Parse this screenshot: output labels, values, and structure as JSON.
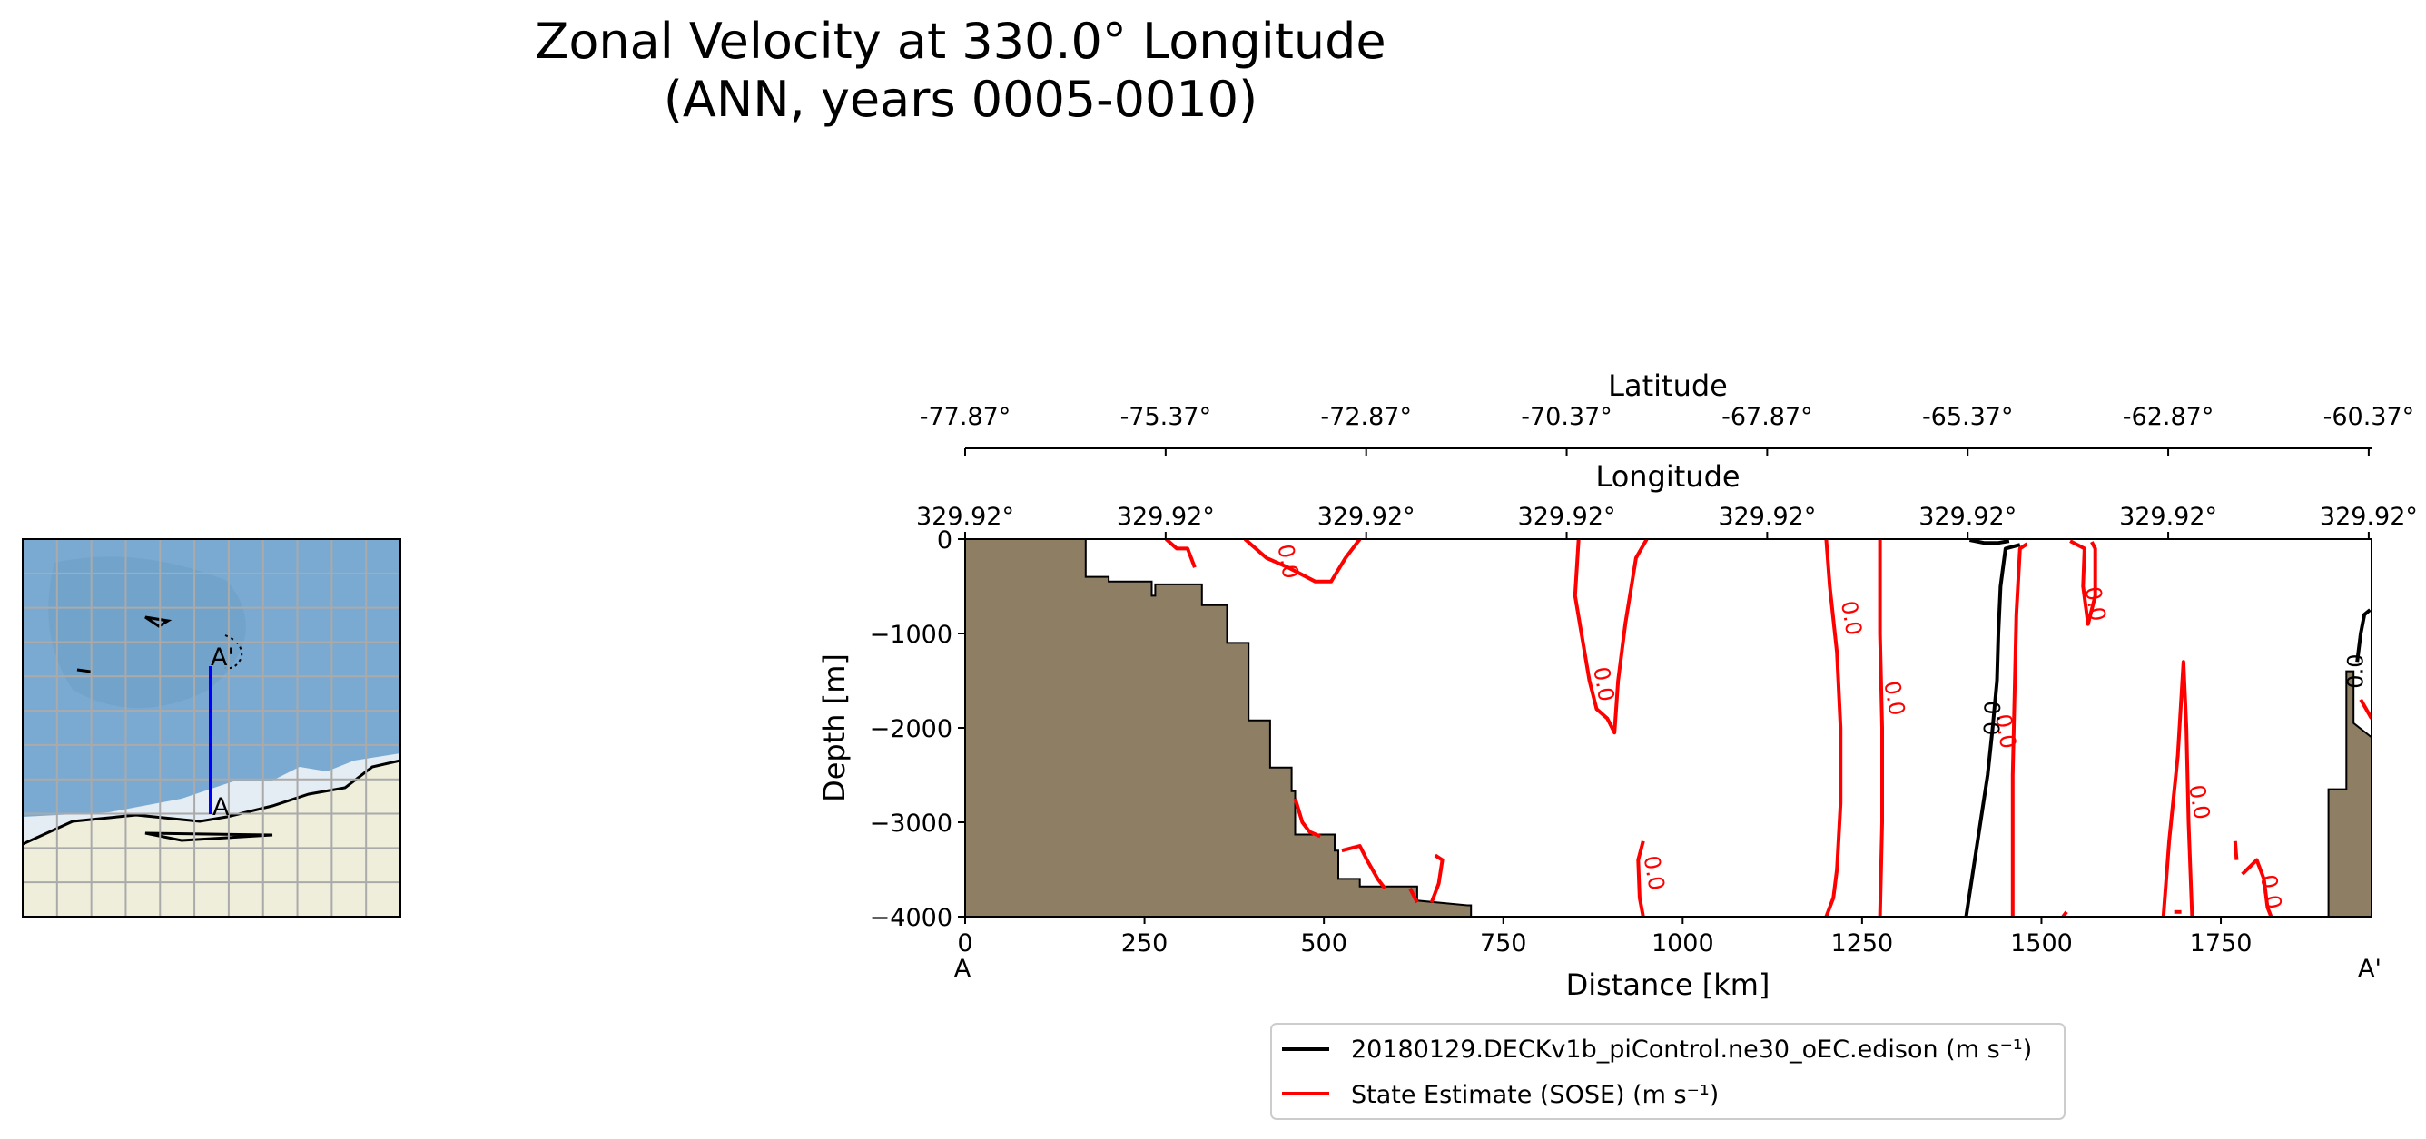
{
  "title_line1": "Zonal Velocity at 330.0° Longitude",
  "title_line2": "(ANN, years 0005-0010)",
  "map_inset": {
    "label_start": "A",
    "label_end": "A'",
    "colors": {
      "ocean": "#7aaad1",
      "land": "#efeedb",
      "ice": "#e4ecf4",
      "grid": "#aaaaaa",
      "section": "#0000ff"
    }
  },
  "chart_data": {
    "type": "contour",
    "xlabel": "Distance [km]",
    "ylabel": "Depth [m]",
    "xlim": [
      0,
      1960
    ],
    "ylim": [
      -4000,
      0
    ],
    "x_ticks": [
      0,
      250,
      500,
      750,
      1000,
      1250,
      1500,
      1750
    ],
    "y_ticks": [
      0,
      -1000,
      -2000,
      -3000,
      -4000
    ],
    "x_end_labels": {
      "start": "A",
      "end": "A'"
    },
    "secondary_axes": [
      {
        "label": "Longitude",
        "ticks": [
          "329.92°",
          "329.92°",
          "329.92°",
          "329.92°",
          "329.92°",
          "329.92°",
          "329.92°",
          "329.92°"
        ]
      },
      {
        "label": "Latitude",
        "ticks": [
          "-77.87°",
          "-75.37°",
          "-72.87°",
          "-70.37°",
          "-67.87°",
          "-65.37°",
          "-62.87°",
          "-60.37°"
        ]
      }
    ],
    "bathymetry": {
      "color": "#8e7f64",
      "points": [
        [
          0,
          0
        ],
        [
          168,
          0
        ],
        [
          168,
          -400
        ],
        [
          200,
          -400
        ],
        [
          200,
          -450
        ],
        [
          260,
          -450
        ],
        [
          260,
          -600
        ],
        [
          265,
          -600
        ],
        [
          265,
          -480
        ],
        [
          330,
          -480
        ],
        [
          330,
          -700
        ],
        [
          365,
          -700
        ],
        [
          365,
          -1100
        ],
        [
          395,
          -1100
        ],
        [
          395,
          -1920
        ],
        [
          425,
          -1920
        ],
        [
          425,
          -2420
        ],
        [
          455,
          -2420
        ],
        [
          455,
          -2670
        ],
        [
          460,
          -2670
        ],
        [
          460,
          -3130
        ],
        [
          515,
          -3130
        ],
        [
          515,
          -3300
        ],
        [
          520,
          -3300
        ],
        [
          520,
          -3600
        ],
        [
          550,
          -3600
        ],
        [
          550,
          -3680
        ],
        [
          630,
          -3680
        ],
        [
          630,
          -3830
        ],
        [
          700,
          -3880
        ],
        [
          705,
          -3880
        ],
        [
          705,
          -4000
        ],
        [
          0,
          -4000
        ]
      ],
      "right_points": [
        [
          1900,
          -4000
        ],
        [
          1900,
          -2650
        ],
        [
          1925,
          -2650
        ],
        [
          1925,
          -1400
        ],
        [
          1935,
          -1400
        ],
        [
          1935,
          -1950
        ],
        [
          1960,
          -2100
        ],
        [
          1960,
          -4000
        ]
      ]
    },
    "contour_level": "0.0",
    "series": [
      {
        "name": "20180129.DECKv1b_piControl.ne30_oEC.edison (m s⁻¹)",
        "color": "#000000",
        "lines": [
          [
            [
              1395,
              -4000
            ],
            [
              1405,
              -3500
            ],
            [
              1415,
              -3000
            ],
            [
              1425,
              -2500
            ],
            [
              1432,
              -2000
            ],
            [
              1438,
              -1500
            ],
            [
              1440,
              -1000
            ],
            [
              1443,
              -500
            ],
            [
              1450,
              -100
            ],
            [
              1470,
              -60
            ]
          ],
          [
            [
              1958,
              -750
            ],
            [
              1950,
              -800
            ],
            [
              1945,
              -1000
            ],
            [
              1940,
              -1300
            ]
          ],
          [
            [
              1400,
              -10
            ],
            [
              1420,
              -40
            ],
            [
              1440,
              -40
            ],
            [
              1455,
              -20
            ]
          ]
        ]
      },
      {
        "name": "State Estimate (SOSE) (m s⁻¹)",
        "color": "#ff0000",
        "lines": [
          [
            [
              280,
              0
            ],
            [
              295,
              -100
            ],
            [
              310,
              -100
            ],
            [
              320,
              -300
            ]
          ],
          [
            [
              390,
              0
            ],
            [
              420,
              -200
            ],
            [
              450,
              -300
            ],
            [
              488,
              -450
            ],
            [
              510,
              -450
            ],
            [
              530,
              -200
            ],
            [
              550,
              0
            ]
          ],
          [
            [
              855,
              0
            ],
            [
              850,
              -600
            ],
            [
              870,
              -1500
            ],
            [
              880,
              -1800
            ],
            [
              895,
              -1900
            ],
            [
              905,
              -2050
            ],
            [
              910,
              -1500
            ],
            [
              920,
              -900
            ],
            [
              935,
              -200
            ],
            [
              950,
              0
            ]
          ],
          [
            [
              945,
              -4000
            ],
            [
              940,
              -3800
            ],
            [
              938,
              -3400
            ],
            [
              945,
              -3200
            ]
          ],
          [
            [
              1200,
              0
            ],
            [
              1205,
              -500
            ],
            [
              1215,
              -1200
            ],
            [
              1220,
              -2000
            ],
            [
              1220,
              -2800
            ],
            [
              1215,
              -3500
            ],
            [
              1210,
              -3800
            ],
            [
              1200,
              -4000
            ]
          ],
          [
            [
              1275,
              0
            ],
            [
              1275,
              -1000
            ],
            [
              1278,
              -2000
            ],
            [
              1278,
              -3000
            ],
            [
              1275,
              -4000
            ]
          ],
          [
            [
              1460,
              -4000
            ],
            [
              1460,
              -3500
            ],
            [
              1460,
              -2500
            ],
            [
              1463,
              -1500
            ],
            [
              1465,
              -800
            ],
            [
              1470,
              -100
            ],
            [
              1480,
              -50
            ]
          ],
          [
            [
              1540,
              -20
            ],
            [
              1560,
              -100
            ],
            [
              1558,
              -500
            ],
            [
              1565,
              -900
            ],
            [
              1575,
              -600
            ],
            [
              1575,
              -100
            ],
            [
              1570,
              -30
            ]
          ],
          [
            [
              1530,
              -4000
            ],
            [
              1535,
              -3950
            ]
          ],
          [
            [
              1670,
              -4000
            ],
            [
              1678,
              -3200
            ],
            [
              1690,
              -2300
            ],
            [
              1698,
              -1300
            ],
            [
              1702,
              -2000
            ],
            [
              1705,
              -3000
            ],
            [
              1710,
              -4000
            ]
          ],
          [
            [
              1685,
              -3950
            ],
            [
              1695,
              -3950
            ]
          ],
          [
            [
              1770,
              -3200
            ],
            [
              1772,
              -3400
            ]
          ],
          [
            [
              1780,
              -3550
            ],
            [
              1800,
              -3400
            ],
            [
              1810,
              -3600
            ],
            [
              1815,
              -3900
            ],
            [
              1820,
              -4000
            ]
          ],
          [
            [
              1945,
              -1700
            ],
            [
              1960,
              -1900
            ]
          ],
          [
            [
              460,
              -2750
            ],
            [
              470,
              -3000
            ],
            [
              480,
              -3100
            ],
            [
              495,
              -3150
            ]
          ],
          [
            [
              525,
              -3300
            ],
            [
              550,
              -3250
            ],
            [
              560,
              -3400
            ],
            [
              575,
              -3600
            ],
            [
              585,
              -3700
            ]
          ],
          [
            [
              620,
              -3700
            ],
            [
              630,
              -3850
            ]
          ],
          [
            [
              650,
              -3850
            ],
            [
              660,
              -3650
            ],
            [
              665,
              -3400
            ],
            [
              655,
              -3350
            ]
          ]
        ],
        "labels": [
          [
            440,
            -250
          ],
          [
            880,
            -1550
          ],
          [
            1225,
            -850
          ],
          [
            1285,
            -1700
          ],
          [
            1565,
            -700
          ],
          [
            1440,
            -2050
          ],
          [
            1710,
            -2800
          ],
          [
            950,
            -3550
          ],
          [
            1810,
            -3750
          ]
        ]
      }
    ],
    "legend_placement": "below-right"
  }
}
